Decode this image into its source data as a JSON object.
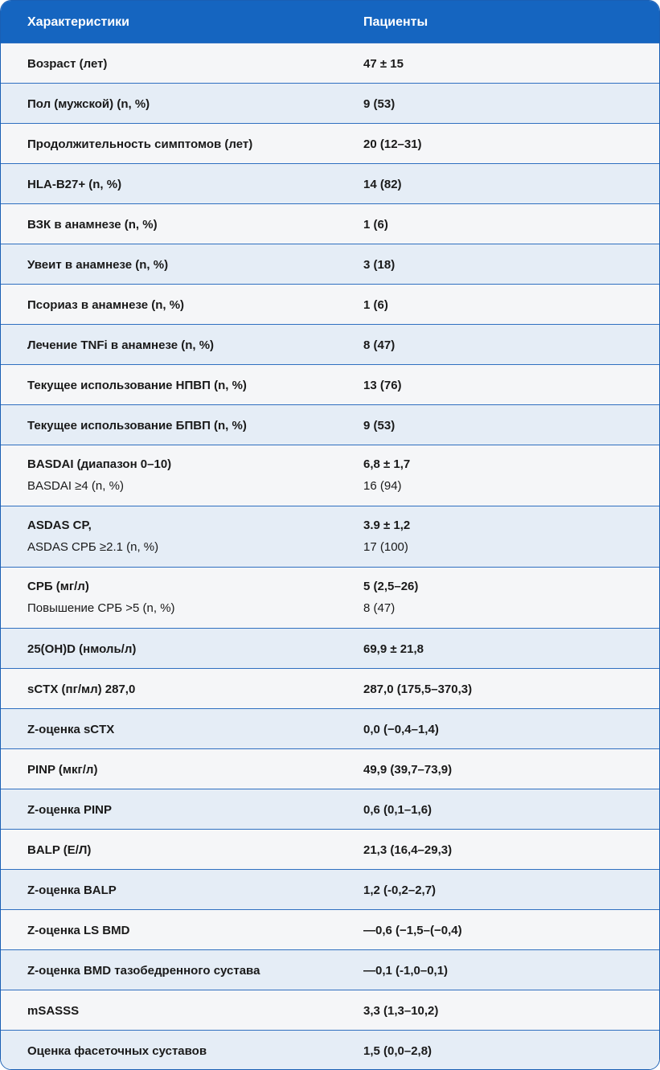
{
  "header": {
    "col1": "Характеристики",
    "col2": "Пациенты"
  },
  "rows": [
    {
      "label": "Возраст (лет)",
      "value": "47 ± 15"
    },
    {
      "label": "Пол (мужской) (n, %)",
      "value": "9 (53)"
    },
    {
      "label": "Продолжительность симптомов (лет)",
      "value": "20 (12–31)"
    },
    {
      "label": "HLA-B27+ (n, %)",
      "value": "14 (82)"
    },
    {
      "label": "ВЗК в анамнезе (n, %)",
      "value": "1 (6)"
    },
    {
      "label": "Увеит в анамнезе (n, %)",
      "value": "3 (18)"
    },
    {
      "label": "Псориаз в анамнезе (n, %)",
      "value": "1 (6)"
    },
    {
      "label": "Лечение TNFi в анамнезе (n, %)",
      "value": "8 (47)"
    },
    {
      "label": "Текущее использование НПВП (n, %)",
      "value": "13 (76)"
    },
    {
      "label": "Текущее использование БПВП (n, %)",
      "value": "9 (53)"
    },
    {
      "label": "BASDAI  (диапазон 0–10)",
      "value": "6,8 ± 1,7",
      "sublabel": "BASDAI  ≥4 (n, %)",
      "subvalue": "16 (94)"
    },
    {
      "label": "ASDAS CP,",
      "value": "3.9 ± 1,2",
      "sublabel": "ASDAS СРБ ≥2.1 (n, %)",
      "subvalue": "17 (100)"
    },
    {
      "label": "СРБ (мг/л)",
      "value": "5 (2,5–26)",
      "sublabel": "Повышение СРБ >5 (n, %)",
      "subvalue": "8 (47)"
    },
    {
      "label": "25(OH)D (нмоль/л)",
      "value": "69,9 ± 21,8"
    },
    {
      "label": "sCTX (пг/мл) 287,0",
      "value": "287,0 (175,5–370,3)"
    },
    {
      "label": "Z-оценка sCTX",
      "value": "0,0 (−0,4–1,4)"
    },
    {
      "label": "PINP (мкг/л)",
      "value": "49,9 (39,7–73,9)"
    },
    {
      "label": "Z-оценка PINP",
      "value": "0,6 (0,1–1,6)"
    },
    {
      "label": "BALP (Е/Л)",
      "value": "21,3 (16,4–29,3)"
    },
    {
      "label": "Z-оценка BALP",
      "value": "1,2 (-0,2–2,7)"
    },
    {
      "label": "Z-оценка LS BMD",
      "value": "—0,6 (−1,5–(−0,4)"
    },
    {
      "label": "Z-оценка BMD тазобедренного сустава",
      "value": "—0,1 (-1,0–0,1)"
    },
    {
      "label": "mSASSS",
      "value": "3,3 (1,3–10,2)"
    },
    {
      "label": "Оценка фасеточных суставов",
      "value": "1,5 (0,0–2,8)"
    }
  ]
}
